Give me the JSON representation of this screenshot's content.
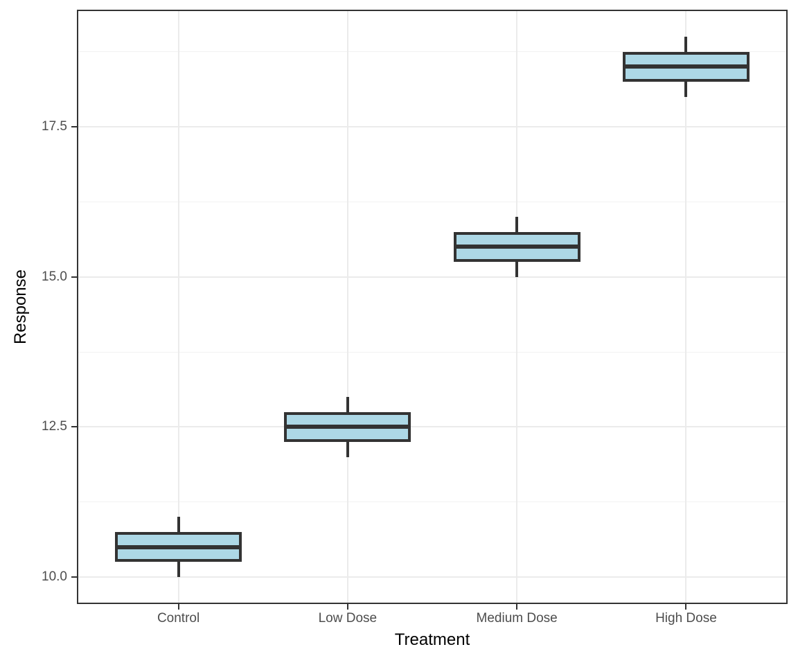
{
  "chart_data": {
    "type": "boxplot",
    "title": "",
    "xlabel": "Treatment",
    "ylabel": "Response",
    "categories": [
      "Control",
      "Low Dose",
      "Medium Dose",
      "High Dose"
    ],
    "series": [
      {
        "category": "Control",
        "whisker_low": 10.0,
        "q1": 10.25,
        "median": 10.5,
        "q3": 10.75,
        "whisker_high": 11.0
      },
      {
        "category": "Low Dose",
        "whisker_low": 12.0,
        "q1": 12.25,
        "median": 12.5,
        "q3": 12.75,
        "whisker_high": 13.0
      },
      {
        "category": "Medium Dose",
        "whisker_low": 15.0,
        "q1": 15.25,
        "median": 15.5,
        "q3": 15.75,
        "whisker_high": 16.0
      },
      {
        "category": "High Dose",
        "whisker_low": 18.0,
        "q1": 18.25,
        "median": 18.5,
        "q3": 18.75,
        "whisker_high": 19.0
      }
    ],
    "ylim": [
      9.55,
      19.45
    ],
    "y_major_ticks": [
      10.0,
      12.5,
      15.0,
      17.5
    ],
    "y_tick_labels": [
      "10.0",
      "12.5",
      "15.0",
      "17.5"
    ],
    "y_minor_gridlines": [
      11.25,
      13.75,
      16.25,
      18.75
    ],
    "grid": true,
    "legend": "none",
    "colors": {
      "box_fill": "#ADD8E6",
      "box_stroke": "#333333",
      "median": "#333333",
      "whisker": "#333333",
      "panel_border": "#333333",
      "grid_major": "#EBEBEB",
      "grid_minor": "#F2F2F2",
      "tick": "#333333",
      "tick_label": "#4D4D4D",
      "axis_title": "#000000",
      "background": "#FFFFFF"
    }
  }
}
